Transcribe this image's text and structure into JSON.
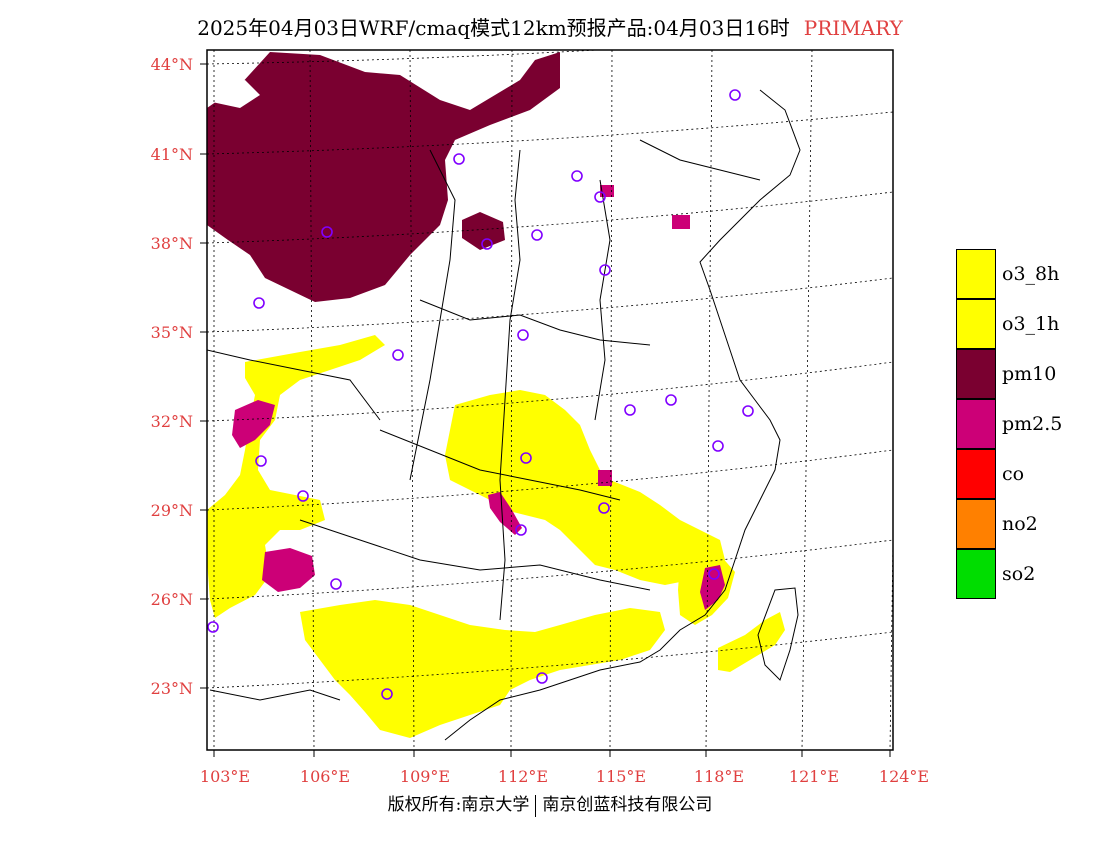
{
  "header": {
    "title": "2025年04月03日WRF/cmaq模式12km预报产品:04月03日16时",
    "product_type": "PRIMARY",
    "product_type_color": "#e04040"
  },
  "map": {
    "lat_labels": [
      "44°N",
      "41°N",
      "38°N",
      "35°N",
      "32°N",
      "29°N",
      "26°N",
      "23°N"
    ],
    "lon_labels": [
      "103°E",
      "106°E",
      "109°E",
      "112°E",
      "115°E",
      "118°E",
      "121°E",
      "124°E"
    ],
    "label_color": "#e04040",
    "colors": {
      "o3": "#ffff00",
      "pm10": "#7a0030",
      "pm25": "#cc0077",
      "station_marker": "#8000ff"
    }
  },
  "legend": {
    "items": [
      {
        "label": "o3_8h",
        "color": "#ffff00"
      },
      {
        "label": "o3_1h",
        "color": "#ffff00"
      },
      {
        "label": "pm10",
        "color": "#7a0030"
      },
      {
        "label": "pm2.5",
        "color": "#cc0077"
      },
      {
        "label": "co",
        "color": "#ff0000"
      },
      {
        "label": "no2",
        "color": "#ff8000"
      },
      {
        "label": "so2",
        "color": "#00dd00"
      }
    ]
  },
  "footer": {
    "copyright_left": "版权所有:南京大学",
    "copyright_right": "南京创蓝科技有限公司"
  }
}
